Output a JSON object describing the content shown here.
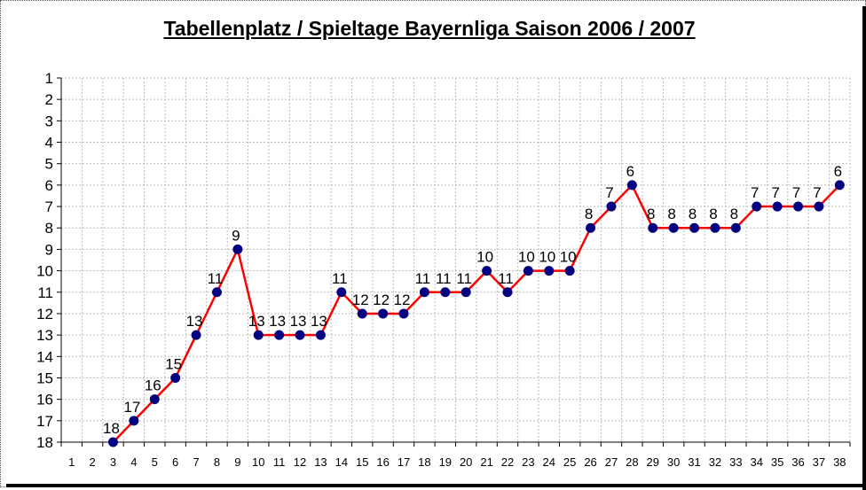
{
  "chart_data": {
    "type": "line",
    "title": "Tabellenplatz / Spieltage Bayernliga Saison 2006 / 2007",
    "xlabel": "",
    "ylabel": "",
    "x": [
      1,
      2,
      3,
      4,
      5,
      6,
      7,
      8,
      9,
      10,
      11,
      12,
      13,
      14,
      15,
      16,
      17,
      18,
      19,
      20,
      21,
      22,
      23,
      24,
      25,
      26,
      27,
      28,
      29,
      30,
      31,
      32,
      33,
      34,
      35,
      36,
      37,
      38
    ],
    "ylim": [
      1,
      18
    ],
    "y_reversed": true,
    "series": [
      {
        "points": [
          [
            3,
            18
          ],
          [
            4,
            17
          ],
          [
            5,
            16
          ],
          [
            6,
            15
          ],
          [
            7,
            13
          ],
          [
            8,
            11
          ],
          [
            9,
            9
          ],
          [
            10,
            13
          ],
          [
            11,
            13
          ],
          [
            12,
            13
          ],
          [
            13,
            13
          ],
          [
            14,
            11
          ],
          [
            15,
            12
          ],
          [
            16,
            12
          ],
          [
            17,
            12
          ],
          [
            18,
            11
          ],
          [
            19,
            11
          ],
          [
            20,
            11
          ],
          [
            21,
            10
          ],
          [
            22,
            11
          ],
          [
            23,
            10
          ],
          [
            24,
            10
          ],
          [
            25,
            10
          ],
          [
            26,
            8
          ],
          [
            27,
            7
          ],
          [
            28,
            6
          ],
          [
            29,
            8
          ],
          [
            30,
            8
          ],
          [
            31,
            8
          ],
          [
            32,
            8
          ],
          [
            33,
            8
          ],
          [
            34,
            7
          ],
          [
            35,
            7
          ],
          [
            36,
            7
          ],
          [
            37,
            7
          ],
          [
            38,
            6
          ]
        ],
        "line_color": "#ff0000",
        "marker_color": "#000080"
      }
    ],
    "grid": true,
    "legend": "none"
  }
}
